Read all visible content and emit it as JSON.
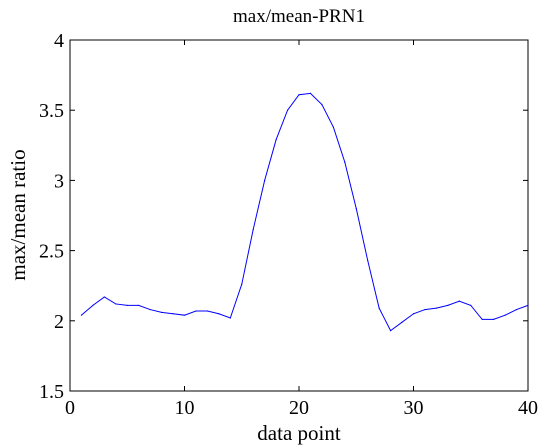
{
  "chart_data": {
    "type": "line",
    "title": "max/mean-PRN1",
    "xlabel": "data point",
    "ylabel": "max/mean ratio",
    "xlim": [
      0,
      40
    ],
    "ylim": [
      1.5,
      4
    ],
    "xticks": [
      0,
      10,
      20,
      30,
      40
    ],
    "yticks": [
      1.5,
      2,
      2.5,
      3,
      3.5,
      4
    ],
    "xtick_labels": [
      "0",
      "10",
      "20",
      "30",
      "40"
    ],
    "ytick_labels": [
      "1.5",
      "2",
      "2.5",
      "3",
      "3.5",
      "4"
    ],
    "grid": false,
    "legend": "none",
    "series": [
      {
        "color": "#0000ff",
        "x": [
          1,
          2,
          3,
          4,
          5,
          6,
          7,
          8,
          9,
          10,
          11,
          12,
          13,
          14,
          15,
          16,
          17,
          18,
          19,
          20,
          21,
          22,
          23,
          24,
          25,
          26,
          27,
          28,
          29,
          30,
          31,
          32,
          33,
          34,
          35,
          36,
          37,
          38,
          39,
          40
        ],
        "y": [
          2.04,
          2.11,
          2.17,
          2.12,
          2.11,
          2.11,
          2.08,
          2.06,
          2.05,
          2.04,
          2.07,
          2.07,
          2.05,
          2.02,
          2.26,
          2.65,
          3.0,
          3.29,
          3.5,
          3.61,
          3.62,
          3.54,
          3.38,
          3.13,
          2.8,
          2.43,
          2.09,
          1.93,
          1.99,
          2.05,
          2.08,
          2.09,
          2.11,
          2.14,
          2.11,
          2.01,
          2.01,
          2.04,
          2.08,
          2.11
        ]
      }
    ]
  }
}
